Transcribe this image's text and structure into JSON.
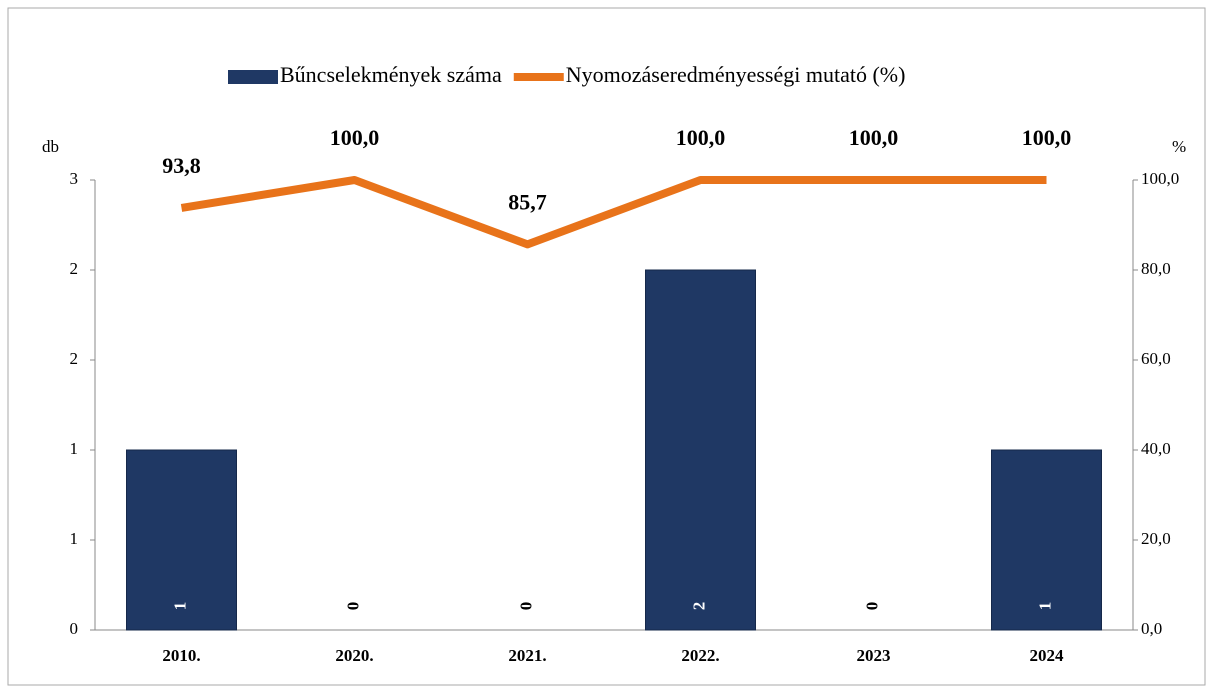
{
  "chart_data": {
    "type": "bar-line",
    "categories": [
      "2010.",
      "2020.",
      "2021.",
      "2022.",
      "2023",
      "2024"
    ],
    "y_label": "db",
    "y2_label": "%",
    "series": [
      {
        "name": "Bűncselekmények száma",
        "type": "bar",
        "color": "#1f3864",
        "values": [
          1,
          0,
          0,
          2,
          0,
          1
        ]
      },
      {
        "name": "Nyomozáseredményességi mutató (%)",
        "type": "line",
        "axis": "y2",
        "color": "#e8731a",
        "values": [
          93.8,
          100,
          85.7,
          100,
          100,
          100
        ],
        "value_labels": [
          "93,8",
          "100,0",
          "85,7",
          "100,0",
          "100,0",
          "100,0"
        ]
      }
    ],
    "ylim": [
      0,
      2.5
    ],
    "yticks": [
      0,
      {
        "value": 0.5,
        "label": "1"
      },
      1,
      {
        "value": 1.5,
        "label": "2"
      },
      2,
      {
        "value": 2.5,
        "label": "3"
      }
    ],
    "y2lim": [
      0,
      100
    ],
    "y2ticks": [
      {
        "value": 0,
        "label": "0,0"
      },
      {
        "value": 20,
        "label": "20,0"
      },
      {
        "value": 40,
        "label": "40,0"
      },
      {
        "value": 60,
        "label": "60,0"
      },
      {
        "value": 80,
        "label": "80,0"
      },
      {
        "value": 100,
        "label": "100,0"
      }
    ]
  }
}
